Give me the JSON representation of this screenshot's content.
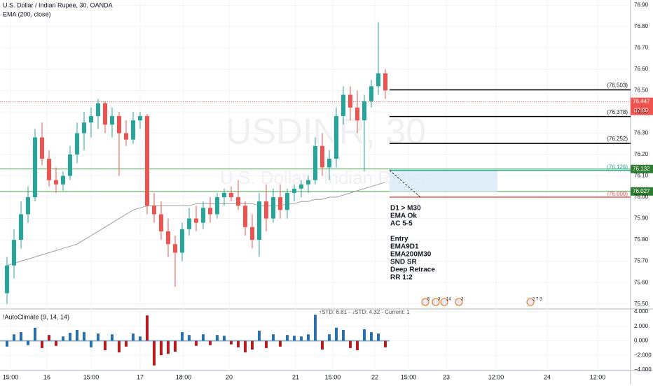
{
  "chart_data": {
    "type": "candlestick",
    "title": "U.S. Dollar / Indian Rupee, 30, OANDA",
    "indicator_label": "EMA (200, close)",
    "watermark": "USDINR, 30",
    "watermark_subtitle": "U.S. Dollar / Indian Rupee",
    "up_color": "#26a69a",
    "down_color": "#ef5350",
    "ema_color": "#9e9e9e",
    "open": [
      75.55,
      75.68,
      75.8,
      75.92,
      76.0,
      76.28,
      76.18,
      76.08,
      76.06,
      76.1,
      76.2,
      76.3,
      76.35,
      76.38,
      76.44,
      76.34,
      76.38,
      76.3,
      76.27,
      76.36,
      76.38,
      75.96,
      75.92,
      75.84,
      75.78,
      75.74,
      75.85,
      75.9,
      75.88,
      75.95,
      75.92,
      76.0,
      76.02,
      76.0,
      75.96,
      75.86,
      75.8,
      75.98,
      75.9,
      76.0,
      75.94,
      76.02,
      76.04,
      76.06,
      76.08,
      76.24,
      76.14,
      76.18,
      76.38,
      76.48,
      76.42,
      76.36,
      76.45,
      76.52,
      76.58
    ],
    "high": [
      75.72,
      75.85,
      75.98,
      76.05,
      76.32,
      76.35,
      76.22,
      76.14,
      76.12,
      76.24,
      76.35,
      76.4,
      76.42,
      76.46,
      76.45,
      76.42,
      76.4,
      76.36,
      76.4,
      76.4,
      76.39,
      76.02,
      75.98,
      75.9,
      75.82,
      75.88,
      75.95,
      75.96,
      75.98,
      76.0,
      76.02,
      76.04,
      76.05,
      76.08,
      75.98,
      75.92,
      76.02,
      76.06,
      76.04,
      76.06,
      76.04,
      76.06,
      76.08,
      76.1,
      76.28,
      76.3,
      76.22,
      76.42,
      76.52,
      76.52,
      76.5,
      76.48,
      76.55,
      76.82,
      76.6
    ],
    "low": [
      75.5,
      75.62,
      75.76,
      75.88,
      75.98,
      76.15,
      76.05,
      76.02,
      76.03,
      76.08,
      76.16,
      76.22,
      76.28,
      76.32,
      76.3,
      76.28,
      76.1,
      76.24,
      76.25,
      76.32,
      75.92,
      75.88,
      75.8,
      75.72,
      75.58,
      75.7,
      75.82,
      75.84,
      75.85,
      75.88,
      75.9,
      75.96,
      75.98,
      75.94,
      75.82,
      75.76,
      75.72,
      75.84,
      75.88,
      75.9,
      75.9,
      75.98,
      76.0,
      76.02,
      76.06,
      76.1,
      76.08,
      76.14,
      76.34,
      76.36,
      76.3,
      76.12,
      76.42,
      76.48,
      76.46
    ],
    "close": [
      75.68,
      75.8,
      75.92,
      76.0,
      76.28,
      76.18,
      76.08,
      76.06,
      76.1,
      76.2,
      76.3,
      76.35,
      76.38,
      76.44,
      76.34,
      76.38,
      76.3,
      76.27,
      76.36,
      76.38,
      75.96,
      75.92,
      75.84,
      75.78,
      75.74,
      75.85,
      75.9,
      75.88,
      75.95,
      75.92,
      76.0,
      76.02,
      76.0,
      75.96,
      75.86,
      75.8,
      75.98,
      75.9,
      76.0,
      75.94,
      76.02,
      76.04,
      76.06,
      76.08,
      76.24,
      76.14,
      76.18,
      76.38,
      76.48,
      76.42,
      76.36,
      76.45,
      76.52,
      76.58,
      76.5
    ],
    "ema": [
      75.68,
      75.69,
      75.7,
      75.71,
      75.72,
      75.73,
      75.74,
      75.75,
      75.76,
      75.77,
      75.78,
      75.8,
      75.82,
      75.84,
      75.86,
      75.88,
      75.9,
      75.92,
      75.94,
      75.95,
      75.96,
      75.96,
      75.96,
      75.96,
      75.96,
      75.96,
      75.96,
      75.97,
      75.97,
      75.97,
      75.97,
      75.97,
      75.97,
      75.97,
      75.97,
      75.97,
      75.96,
      75.96,
      75.96,
      75.96,
      75.97,
      75.97,
      75.98,
      75.98,
      75.99,
      75.99,
      76.0,
      76.0,
      76.01,
      76.02,
      76.03,
      76.04,
      76.05,
      76.06,
      76.07
    ],
    "ylim": [
      75.476,
      76.924
    ],
    "yticks": [
      {
        "value": 75.5,
        "label": "75.50"
      },
      {
        "value": 75.6,
        "label": "75.60"
      },
      {
        "value": 75.7,
        "label": "75.70"
      },
      {
        "value": 75.8,
        "label": "75.80"
      },
      {
        "value": 75.9,
        "label": "75.90"
      },
      {
        "value": 76,
        "label": "76.00"
      },
      {
        "value": 76.1,
        "label": "76.10"
      },
      {
        "value": 76.2,
        "label": "76.20"
      },
      {
        "value": 76.3,
        "label": "76.30"
      },
      {
        "value": 76.4,
        "label": "76.40"
      },
      {
        "value": 76.5,
        "label": "76.50"
      },
      {
        "value": 76.6,
        "label": "76.60"
      },
      {
        "value": 76.7,
        "label": "76.70"
      },
      {
        "value": 76.8,
        "label": "76.80"
      },
      {
        "value": 76.9,
        "label": "76.90"
      }
    ],
    "levels": [
      {
        "value": 76.503,
        "label": "(76.503)"
      },
      {
        "value": 76.378,
        "label": "(76.378)"
      },
      {
        "value": 76.252,
        "label": "(76.252)"
      }
    ],
    "entry": {
      "value": 76.126,
      "label": "(76.126)"
    },
    "stop": {
      "value": 76,
      "label": "(76.000)"
    },
    "zones": [
      76.132,
      76.027
    ],
    "last_price": 76.447,
    "countdown": "07:00",
    "notes": [
      "D1 > M30",
      "EMA Ok",
      "AC 5-5",
      "Entry",
      "EMA9D1",
      "EMA200M30",
      "SND SR",
      "Deep Retrace",
      "RR 1:2"
    ],
    "time_labels": [
      "15:00",
      "16",
      "15:00",
      "17",
      "18:00",
      "20",
      "21",
      "15:00",
      "22",
      "15:00",
      "23",
      "12:00",
      "24",
      "12:00"
    ],
    "events": [
      "5",
      "3",
      "14",
      "3",
      "2 7 3"
    ],
    "oscillator": {
      "name": "!AutoClimate (9, 14, 14)",
      "stats": "↑STD: 6.81 - ↓STD: 4.32 - Current: 1",
      "up_color": "#2a6fa8",
      "down_color": "#b71c1c",
      "values": [
        -0.8,
        0.9,
        1.2,
        -0.6,
        1.8,
        -1.0,
        0.8,
        -0.7,
        0.6,
        1.1,
        1.5,
        1.2,
        -0.9,
        1.0,
        -1.3,
        0.9,
        -1.6,
        -0.8,
        1.0,
        0.6,
        3.5,
        -3.4,
        -2.0,
        -1.8,
        -1.5,
        1.2,
        0.8,
        -0.7,
        0.9,
        -0.6,
        0.8,
        0.7,
        -0.5,
        -0.9,
        -1.6,
        -1.2,
        1.4,
        -1.0,
        0.9,
        -0.8,
        0.8,
        0.7,
        0.6,
        0.9,
        3.6,
        -1.2,
        0.9,
        1.8,
        1.5,
        -1.0,
        -1.3,
        1.6,
        1.2,
        1.0,
        -0.9
      ],
      "ylim": [
        -4.1,
        4.1
      ],
      "yticks": [
        {
          "value": 4,
          "label": "4.000"
        },
        {
          "value": 2,
          "label": "2.000"
        },
        {
          "value": 0,
          "label": "0.000"
        },
        {
          "value": -2,
          "label": "−2.000"
        },
        {
          "value": -4,
          "label": "−4.000"
        }
      ]
    }
  }
}
